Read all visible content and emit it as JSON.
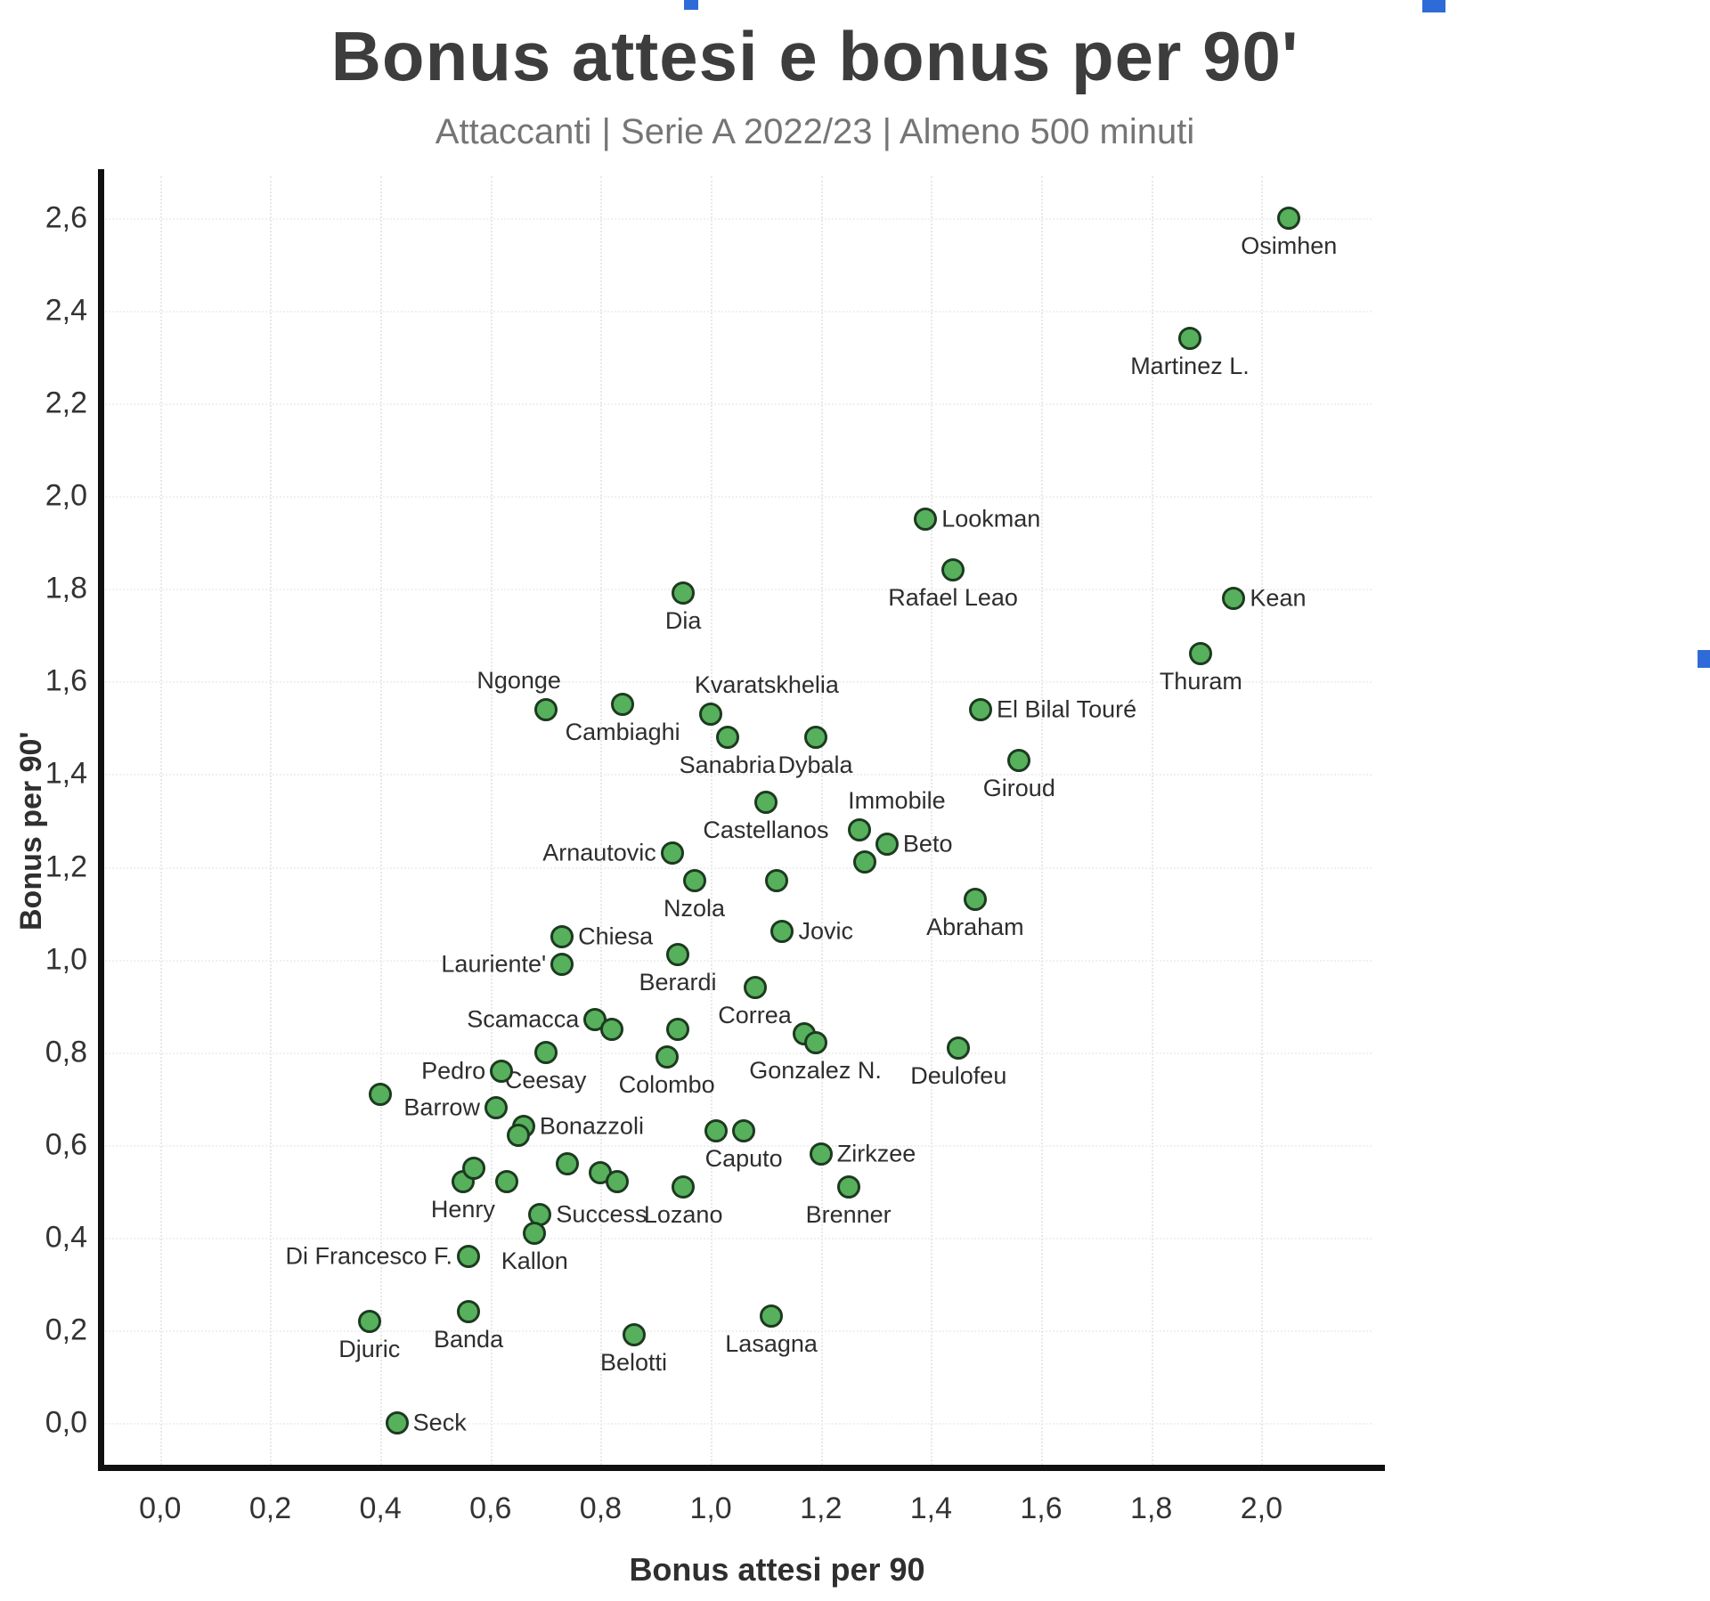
{
  "chart_data": {
    "type": "scatter",
    "title": "Bonus attesi e bonus per 90'",
    "subtitle": "Attaccanti | Serie A 2022/23 | Almeno 500 minuti",
    "xlabel": "Bonus attesi per 90",
    "ylabel": "Bonus per 90'",
    "xlim": [
      -0.1,
      2.2
    ],
    "ylim": [
      -0.09,
      2.69
    ],
    "grid": true,
    "legend": "none",
    "marker": {
      "fill": "#57b05c",
      "stroke": "#1d3a20"
    },
    "x_ticks": {
      "values": [
        0.0,
        0.2,
        0.4,
        0.6,
        0.8,
        1.0,
        1.2,
        1.4,
        1.6,
        1.8,
        2.0
      ],
      "labels": [
        "0,0",
        "0,2",
        "0,4",
        "0,6",
        "0,8",
        "1,0",
        "1,2",
        "1,4",
        "1,6",
        "1,8",
        "2,0"
      ]
    },
    "y_ticks": {
      "values": [
        0.0,
        0.2,
        0.4,
        0.6,
        0.8,
        1.0,
        1.2,
        1.4,
        1.6,
        1.8,
        2.0,
        2.2,
        2.4,
        2.6
      ],
      "labels": [
        "0,0",
        "0,2",
        "0,4",
        "0,6",
        "0,8",
        "1,0",
        "1,2",
        "1,4",
        "1,6",
        "1,8",
        "2,0",
        "2,2",
        "2,4",
        "2,6"
      ]
    },
    "points": [
      {
        "name": "Osimhen",
        "x": 2.05,
        "y": 2.6,
        "label_pos": "below"
      },
      {
        "name": "Martinez L.",
        "x": 1.87,
        "y": 2.34,
        "label_pos": "below"
      },
      {
        "name": "Lookman",
        "x": 1.39,
        "y": 1.95,
        "label_pos": "right"
      },
      {
        "name": "Rafael Leao",
        "x": 1.44,
        "y": 1.84,
        "label_pos": "below"
      },
      {
        "name": "Kean",
        "x": 1.95,
        "y": 1.78,
        "label_pos": "right"
      },
      {
        "name": "Dia",
        "x": 0.95,
        "y": 1.79,
        "label_pos": "below"
      },
      {
        "name": "Thuram",
        "x": 1.89,
        "y": 1.66,
        "label_pos": "below"
      },
      {
        "name": "Ngonge",
        "x": 0.7,
        "y": 1.54,
        "label_pos": "above-left"
      },
      {
        "name": "Cambiaghi",
        "x": 0.84,
        "y": 1.55,
        "label_pos": "below"
      },
      {
        "name": "Kvaratskhelia",
        "x": 1.0,
        "y": 1.53,
        "label_pos": "above-right"
      },
      {
        "name": "Sanabria",
        "x": 1.03,
        "y": 1.48,
        "label_pos": "below"
      },
      {
        "name": "Dybala",
        "x": 1.19,
        "y": 1.48,
        "label_pos": "below"
      },
      {
        "name": "El Bilal Touré",
        "x": 1.49,
        "y": 1.54,
        "label_pos": "right"
      },
      {
        "name": "Giroud",
        "x": 1.56,
        "y": 1.43,
        "label_pos": "below"
      },
      {
        "name": "Castellanos",
        "x": 1.1,
        "y": 1.34,
        "label_pos": "below"
      },
      {
        "name": "Immobile",
        "x": 1.27,
        "y": 1.28,
        "label_pos": "above-right"
      },
      {
        "name": "Beto",
        "x": 1.32,
        "y": 1.25,
        "label_pos": "right"
      },
      {
        "name": "",
        "x": 1.28,
        "y": 1.21,
        "label_pos": "none"
      },
      {
        "name": "Arnautovic",
        "x": 0.93,
        "y": 1.23,
        "label_pos": "left"
      },
      {
        "name": "Nzola",
        "x": 0.97,
        "y": 1.17,
        "label_pos": "below"
      },
      {
        "name": "",
        "x": 1.12,
        "y": 1.17,
        "label_pos": "none"
      },
      {
        "name": "Jovic",
        "x": 1.13,
        "y": 1.06,
        "label_pos": "right"
      },
      {
        "name": "Abraham",
        "x": 1.48,
        "y": 1.13,
        "label_pos": "below"
      },
      {
        "name": "Chiesa",
        "x": 0.73,
        "y": 1.05,
        "label_pos": "right"
      },
      {
        "name": "Lauriente'",
        "x": 0.73,
        "y": 0.99,
        "label_pos": "left"
      },
      {
        "name": "Berardi",
        "x": 0.94,
        "y": 1.01,
        "label_pos": "below"
      },
      {
        "name": "Correa",
        "x": 1.08,
        "y": 0.94,
        "label_pos": "below"
      },
      {
        "name": "Scamacca",
        "x": 0.79,
        "y": 0.87,
        "label_pos": "left"
      },
      {
        "name": "",
        "x": 0.82,
        "y": 0.85,
        "label_pos": "none"
      },
      {
        "name": "Ceesay",
        "x": 0.7,
        "y": 0.8,
        "label_pos": "below"
      },
      {
        "name": "",
        "x": 0.94,
        "y": 0.85,
        "label_pos": "none"
      },
      {
        "name": "Colombo",
        "x": 0.92,
        "y": 0.79,
        "label_pos": "below"
      },
      {
        "name": "",
        "x": 1.17,
        "y": 0.84,
        "label_pos": "none"
      },
      {
        "name": "Gonzalez N.",
        "x": 1.19,
        "y": 0.82,
        "label_pos": "below"
      },
      {
        "name": "Deulofeu",
        "x": 1.45,
        "y": 0.81,
        "label_pos": "below"
      },
      {
        "name": "Pedro",
        "x": 0.62,
        "y": 0.76,
        "label_pos": "left"
      },
      {
        "name": "",
        "x": 0.4,
        "y": 0.71,
        "label_pos": "none"
      },
      {
        "name": "Barrow",
        "x": 0.61,
        "y": 0.68,
        "label_pos": "left"
      },
      {
        "name": "Bonazzoli",
        "x": 0.66,
        "y": 0.64,
        "label_pos": "right"
      },
      {
        "name": "",
        "x": 0.65,
        "y": 0.62,
        "label_pos": "none"
      },
      {
        "name": "",
        "x": 1.01,
        "y": 0.63,
        "label_pos": "none"
      },
      {
        "name": "Caputo",
        "x": 1.06,
        "y": 0.63,
        "label_pos": "below"
      },
      {
        "name": "Zirkzee",
        "x": 1.2,
        "y": 0.58,
        "label_pos": "right"
      },
      {
        "name": "Henry",
        "x": 0.55,
        "y": 0.52,
        "label_pos": "below"
      },
      {
        "name": "",
        "x": 0.57,
        "y": 0.55,
        "label_pos": "none"
      },
      {
        "name": "",
        "x": 0.63,
        "y": 0.52,
        "label_pos": "none"
      },
      {
        "name": "Success",
        "x": 0.69,
        "y": 0.45,
        "label_pos": "right"
      },
      {
        "name": "Kallon",
        "x": 0.68,
        "y": 0.41,
        "label_pos": "below"
      },
      {
        "name": "",
        "x": 0.74,
        "y": 0.56,
        "label_pos": "none"
      },
      {
        "name": "",
        "x": 0.8,
        "y": 0.54,
        "label_pos": "none"
      },
      {
        "name": "",
        "x": 0.83,
        "y": 0.52,
        "label_pos": "none"
      },
      {
        "name": "Lozano",
        "x": 0.95,
        "y": 0.51,
        "label_pos": "below"
      },
      {
        "name": "Brenner",
        "x": 1.25,
        "y": 0.51,
        "label_pos": "below"
      },
      {
        "name": "Di Francesco F.",
        "x": 0.56,
        "y": 0.36,
        "label_pos": "left"
      },
      {
        "name": "Djuric",
        "x": 0.38,
        "y": 0.22,
        "label_pos": "below"
      },
      {
        "name": "Banda",
        "x": 0.56,
        "y": 0.24,
        "label_pos": "below"
      },
      {
        "name": "Belotti",
        "x": 0.86,
        "y": 0.19,
        "label_pos": "below"
      },
      {
        "name": "Lasagna",
        "x": 1.11,
        "y": 0.23,
        "label_pos": "below"
      },
      {
        "name": "Seck",
        "x": 0.43,
        "y": 0.0,
        "label_pos": "right"
      }
    ]
  }
}
